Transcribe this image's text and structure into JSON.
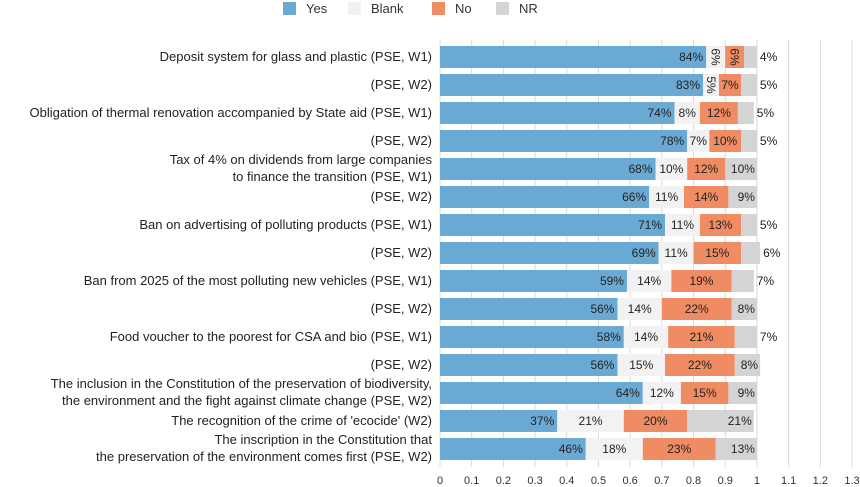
{
  "chart_data": {
    "type": "bar",
    "orientation": "horizontal",
    "stacked": true,
    "categories": [
      [
        "Deposit system for glass and plastic (PSE, W1)"
      ],
      [
        "(PSE, W2)"
      ],
      [
        "Obligation of thermal renovation accompanied by State aid (PSE, W1)"
      ],
      [
        "(PSE, W2)"
      ],
      [
        "Tax of 4% on dividends from large companies",
        "to finance the transition (PSE, W1)"
      ],
      [
        "(PSE, W2)"
      ],
      [
        "Ban on advertising of polluting products (PSE, W1)"
      ],
      [
        "(PSE, W2)"
      ],
      [
        "Ban from 2025 of the most polluting new vehicles (PSE, W1)"
      ],
      [
        "(PSE, W2)"
      ],
      [
        "Food voucher to the poorest for CSA and bio (PSE, W1)"
      ],
      [
        "(PSE, W2)"
      ],
      [
        "The inclusion in the Constitution of the preservation of biodiversity,",
        "the environment and the fight against climate change (PSE, W2)"
      ],
      [
        "The recognition of the crime of 'ecocide' (W2)"
      ],
      [
        "The inscription in the Constitution that",
        "the preservation of the environment comes first (PSE, W2)"
      ]
    ],
    "series": [
      {
        "name": "Yes",
        "color": "#6aa9d3",
        "values": [
          0.84,
          0.83,
          0.74,
          0.78,
          0.68,
          0.66,
          0.71,
          0.69,
          0.59,
          0.56,
          0.58,
          0.56,
          0.64,
          0.37,
          0.46
        ],
        "labels": [
          "84%",
          "83%",
          "74%",
          "78%",
          "68%",
          "66%",
          "71%",
          "69%",
          "59%",
          "56%",
          "58%",
          "56%",
          "64%",
          "37%",
          "46%"
        ]
      },
      {
        "name": "Blank",
        "color": "#f2f2f2",
        "values": [
          0.06,
          0.05,
          0.08,
          0.07,
          0.1,
          0.11,
          0.11,
          0.11,
          0.14,
          0.14,
          0.14,
          0.15,
          0.12,
          0.21,
          0.18
        ],
        "labels": [
          "6%",
          "5%",
          "8%",
          "7%",
          "10%",
          "11%",
          "11%",
          "11%",
          "14%",
          "14%",
          "14%",
          "15%",
          "12%",
          "21%",
          "18%"
        ]
      },
      {
        "name": "No",
        "color": "#ef8c63",
        "values": [
          0.06,
          0.07,
          0.12,
          0.1,
          0.12,
          0.14,
          0.13,
          0.15,
          0.19,
          0.22,
          0.21,
          0.22,
          0.15,
          0.2,
          0.23
        ],
        "labels": [
          "6%",
          "7%",
          "12%",
          "10%",
          "12%",
          "14%",
          "13%",
          "15%",
          "19%",
          "22%",
          "21%",
          "22%",
          "15%",
          "20%",
          "23%"
        ]
      },
      {
        "name": "NR",
        "color": "#d4d4d4",
        "values": [
          0.04,
          0.05,
          0.05,
          0.05,
          0.1,
          0.09,
          0.05,
          0.06,
          0.07,
          0.08,
          0.07,
          0.08,
          0.09,
          0.21,
          0.13
        ],
        "labels": [
          "4%",
          "5%",
          "5%",
          "5%",
          "10%",
          "9%",
          "5%",
          "6%",
          "7%",
          "8%",
          "7%",
          "8%",
          "9%",
          "21%",
          "13%"
        ]
      }
    ],
    "xlim": [
      0,
      1.3
    ],
    "xticks": [
      0,
      0.1,
      0.2,
      0.3,
      0.4,
      0.5,
      0.6,
      0.7,
      0.8,
      0.9,
      1,
      1.1,
      1.2,
      1.3
    ],
    "xtick_labels": [
      "0",
      "0.1",
      "0.2",
      "0.3",
      "0.4",
      "0.5",
      "0.6",
      "0.7",
      "0.8",
      "0.9",
      "1",
      "1.1",
      "1.2",
      "1.3"
    ],
    "grid": true,
    "legend": {
      "placement": "top-center",
      "items": [
        {
          "name": "Yes",
          "color": "#6aa9d3"
        },
        {
          "name": "Blank",
          "color": "#f2f2f2"
        },
        {
          "name": "No",
          "color": "#ef8c63"
        },
        {
          "name": "NR",
          "color": "#d4d4d4"
        }
      ]
    },
    "title": "",
    "xlabel": "",
    "ylabel": ""
  }
}
